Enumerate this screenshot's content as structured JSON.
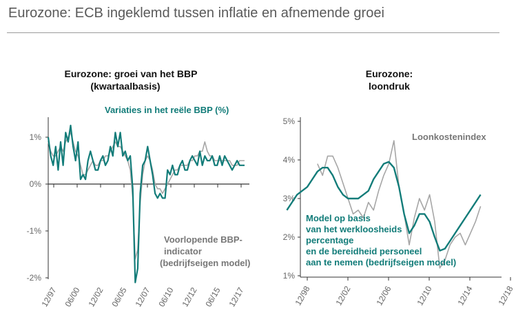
{
  "header": {
    "title": "Eurozone: ECB ingeklemd tussen inflatie en afnemende groei"
  },
  "colors": {
    "teal": "#127c79",
    "grey": "#a6a6a6",
    "axis": "#333333"
  },
  "chart_data": [
    {
      "type": "line",
      "title": [
        "Eurozone: groei van het BBP",
        "(kwartaalbasis)"
      ],
      "y_ticks": [
        "1%",
        "0%",
        "-1%",
        "-2%"
      ],
      "ylim": [
        -2,
        1.5
      ],
      "x_ticks": [
        "12/97",
        "06/00",
        "12/02",
        "06/05",
        "12/07",
        "06/10",
        "12/12",
        "06/15",
        "12/17"
      ],
      "series": [
        {
          "name": "Variaties in het reële BBP (%)",
          "color": "teal",
          "x": [
            0,
            1,
            2,
            3,
            4,
            5,
            6,
            7,
            8,
            9,
            10,
            11,
            12,
            13,
            14,
            15,
            16,
            17,
            18,
            19,
            20,
            21,
            22,
            23,
            24,
            25,
            26,
            27,
            28,
            29,
            30,
            31,
            32,
            33,
            34,
            35,
            36,
            37,
            38,
            39,
            40,
            41,
            42,
            43,
            44,
            45,
            46,
            47,
            48,
            49,
            50,
            51,
            52,
            53,
            54,
            55,
            56,
            57,
            58,
            59,
            60,
            61,
            62,
            63,
            64,
            65,
            66,
            67,
            68,
            69,
            70,
            71,
            72,
            73,
            74,
            75,
            76,
            77,
            78,
            79
          ],
          "y": [
            1.0,
            0.6,
            0.4,
            0.8,
            0.3,
            0.9,
            0.4,
            1.1,
            0.9,
            1.25,
            0.8,
            0.5,
            0.9,
            0.1,
            0.2,
            0.1,
            0.5,
            0.7,
            0.5,
            0.3,
            0.3,
            0.5,
            0.6,
            0.4,
            0.5,
            0.8,
            0.6,
            1.1,
            0.8,
            1.1,
            0.6,
            0.7,
            0.5,
            0.6,
            -0.1,
            -2.1,
            -1.8,
            -0.2,
            0.4,
            0.5,
            0.8,
            0.5,
            0.2,
            -0.2,
            -0.3,
            -0.2,
            -0.3,
            -0.3,
            0.3,
            0.2,
            0.4,
            0.2,
            0.2,
            0.4,
            0.5,
            0.3,
            0.3,
            0.5,
            0.6,
            0.5,
            0.4,
            0.7,
            0.4,
            0.6,
            0.5,
            0.5,
            0.6,
            0.4,
            0.4,
            0.6,
            0.4,
            0.6,
            0.5,
            0.4,
            0.3,
            0.4,
            0.5,
            0.4,
            0.4,
            0.4
          ]
        },
        {
          "name": "Voorlopende BBP-indicator (bedrijfseigen model)",
          "color": "grey",
          "x": [
            0,
            1,
            2,
            3,
            4,
            5,
            6,
            7,
            8,
            9,
            10,
            11,
            12,
            13,
            14,
            15,
            16,
            17,
            18,
            19,
            20,
            21,
            22,
            23,
            24,
            25,
            26,
            27,
            28,
            29,
            30,
            31,
            32,
            33,
            34,
            35,
            36,
            37,
            38,
            39,
            40,
            41,
            42,
            43,
            44,
            45,
            46,
            47,
            48,
            49,
            50,
            51,
            52,
            53,
            54,
            55,
            56,
            57,
            58,
            59,
            60,
            61,
            62,
            63,
            64,
            65,
            66,
            67,
            68,
            69,
            70,
            71,
            72,
            73,
            74,
            75,
            76,
            77,
            78,
            79
          ],
          "y": [
            0.9,
            0.7,
            0.6,
            0.6,
            0.7,
            0.8,
            0.7,
            0.9,
            1.0,
            1.1,
            0.9,
            0.7,
            0.6,
            0.4,
            0.2,
            0.2,
            0.3,
            0.4,
            0.5,
            0.4,
            0.4,
            0.5,
            0.5,
            0.6,
            0.6,
            0.7,
            0.8,
            0.9,
            0.8,
            0.8,
            0.7,
            0.6,
            0.5,
            0.3,
            -0.3,
            -1.6,
            -1.4,
            -0.4,
            0.2,
            0.5,
            0.6,
            0.5,
            0.3,
            0.0,
            -0.1,
            -0.1,
            -0.2,
            -0.1,
            0.0,
            0.1,
            0.2,
            0.3,
            0.3,
            0.4,
            0.4,
            0.4,
            0.4,
            0.5,
            0.5,
            0.6,
            0.6,
            0.7,
            0.7,
            0.9,
            0.7,
            0.6,
            0.6,
            0.5,
            0.5,
            0.5,
            0.5,
            0.5,
            0.5,
            0.5,
            0.4,
            0.4,
            0.4,
            0.5,
            0.5,
            0.5
          ]
        }
      ],
      "labels": {
        "teal": "Variaties in het reële BBP (%)",
        "grey": [
          "Voorlopende BBP-",
          "indicator",
          "(bedrijfseigen model)"
        ]
      }
    },
    {
      "type": "line",
      "title": [
        "Eurozone:",
        "loondruk"
      ],
      "y_ticks": [
        "5%",
        "4%",
        "3%",
        "2%",
        "1%"
      ],
      "ylim": [
        1,
        5
      ],
      "x_ticks": [
        "12/98",
        "12/02",
        "12/06",
        "12/10",
        "12/14",
        "12/18"
      ],
      "series": [
        {
          "name": "Loonkostenindex",
          "color": "grey",
          "x": [
            1,
            1.5,
            2,
            2.5,
            3,
            3.5,
            4,
            4.5,
            5,
            5.5,
            6,
            6.5,
            7,
            7.5,
            8,
            8.5,
            9,
            9.5,
            10,
            10.5,
            11,
            11.5,
            12,
            12.5,
            13,
            13.5,
            14,
            14.5,
            15,
            15.5,
            16,
            16.5,
            17
          ],
          "y": [
            3.9,
            3.6,
            4.1,
            4.1,
            3.8,
            3.4,
            3.0,
            2.6,
            2.7,
            2.5,
            2.9,
            2.7,
            3.2,
            3.6,
            3.9,
            4.5,
            3.3,
            2.6,
            1.8,
            2.5,
            3.0,
            2.7,
            3.1,
            2.4,
            1.2,
            1.4,
            1.8,
            2.0,
            2.1,
            1.8,
            2.1,
            2.4,
            2.8
          ]
        },
        {
          "name": "Model op basis van het werkloosheidspercentage en de bereidheid personeel aan te nemen (bedrijfseigen model)",
          "color": "teal",
          "x": [
            -2,
            -1.5,
            -1,
            -0.5,
            0,
            0.5,
            1,
            1.5,
            2,
            2.5,
            3,
            3.5,
            4,
            4.5,
            5,
            5.5,
            6,
            6.5,
            7,
            7.5,
            8,
            8.5,
            9,
            9.5,
            10,
            10.5,
            11,
            11.5,
            12,
            12.5,
            13,
            13.5,
            14,
            14.5,
            15,
            15.5,
            16,
            16.5,
            17
          ],
          "y": [
            2.7,
            2.9,
            3.1,
            3.2,
            3.3,
            3.5,
            3.7,
            3.8,
            3.8,
            3.6,
            3.3,
            3.1,
            3.0,
            3.0,
            3.0,
            3.1,
            3.2,
            3.5,
            3.7,
            3.9,
            3.95,
            3.8,
            3.3,
            2.6,
            2.1,
            2.3,
            2.6,
            2.6,
            2.4,
            2.0,
            1.65,
            1.7,
            1.9,
            2.1,
            2.3,
            2.5,
            2.7,
            2.9,
            3.1
          ]
        }
      ],
      "labels": {
        "grey": "Loonkostenindex",
        "teal": [
          "Model op basis",
          "van het werkloosheids",
          "percentage",
          "en de bereidheid personeel",
          "aan te nemen (bedrijfseigen model)"
        ]
      }
    }
  ]
}
